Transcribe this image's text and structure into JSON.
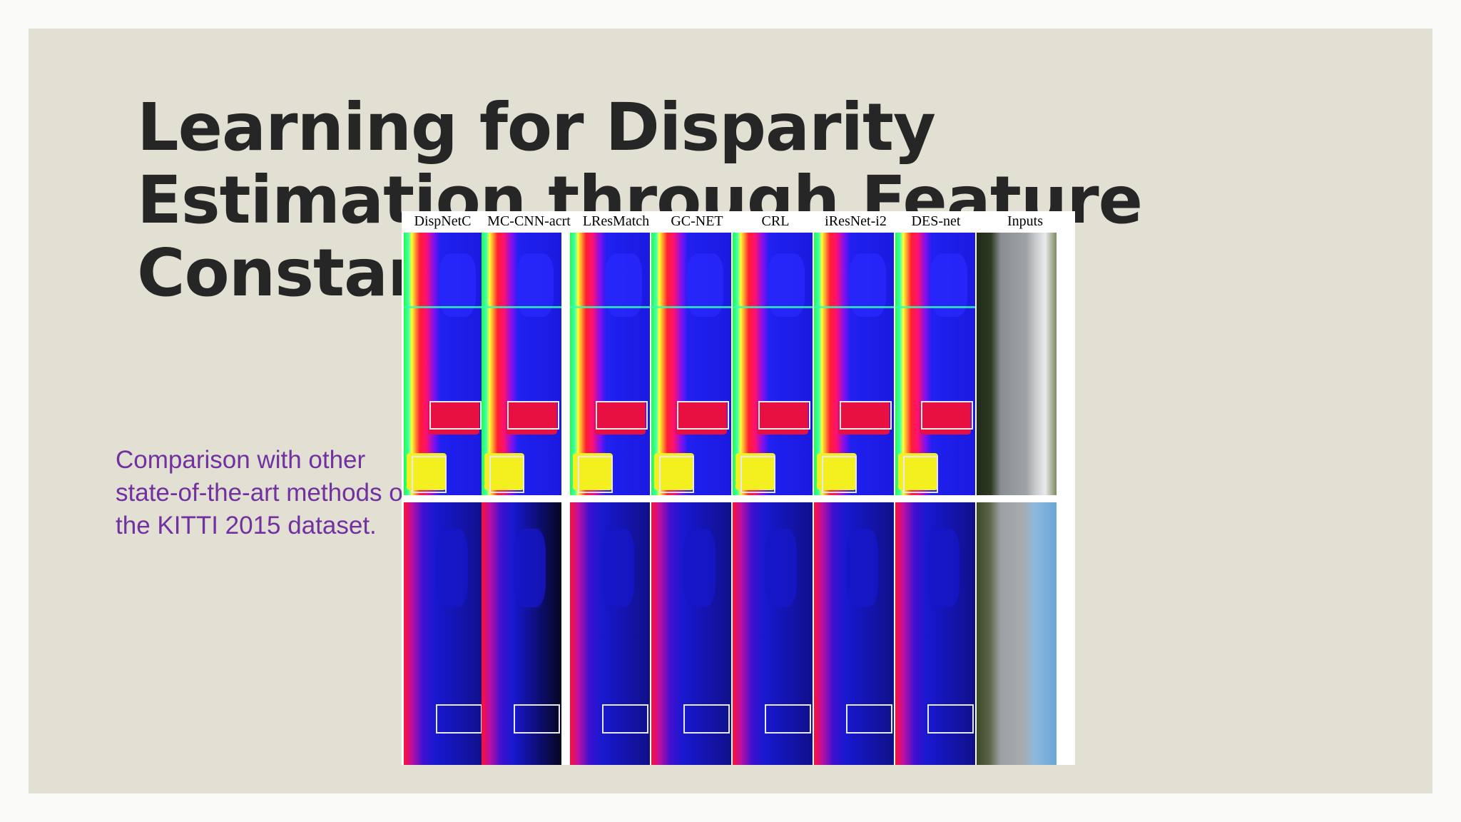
{
  "slide": {
    "title": "Learning for Disparity Estimation through Feature Constancy",
    "caption": "Comparison with other state-of-the-art methods on the KITTI 2015 dataset."
  },
  "figure": {
    "columns": [
      {
        "label": "DispNetC"
      },
      {
        "label": "MC-CNN-acrt"
      },
      {
        "label": "LResMatch"
      },
      {
        "label": "GC-NET"
      },
      {
        "label": "CRL"
      },
      {
        "label": "iResNet-i2"
      },
      {
        "label": "DES-net"
      },
      {
        "label": "Inputs"
      }
    ]
  },
  "colors": {
    "slide_bg": "#e2dfd3",
    "title": "#262626",
    "caption": "#7131a0",
    "disparity_far": "#1010e0",
    "disparity_near": "#ff1030"
  }
}
